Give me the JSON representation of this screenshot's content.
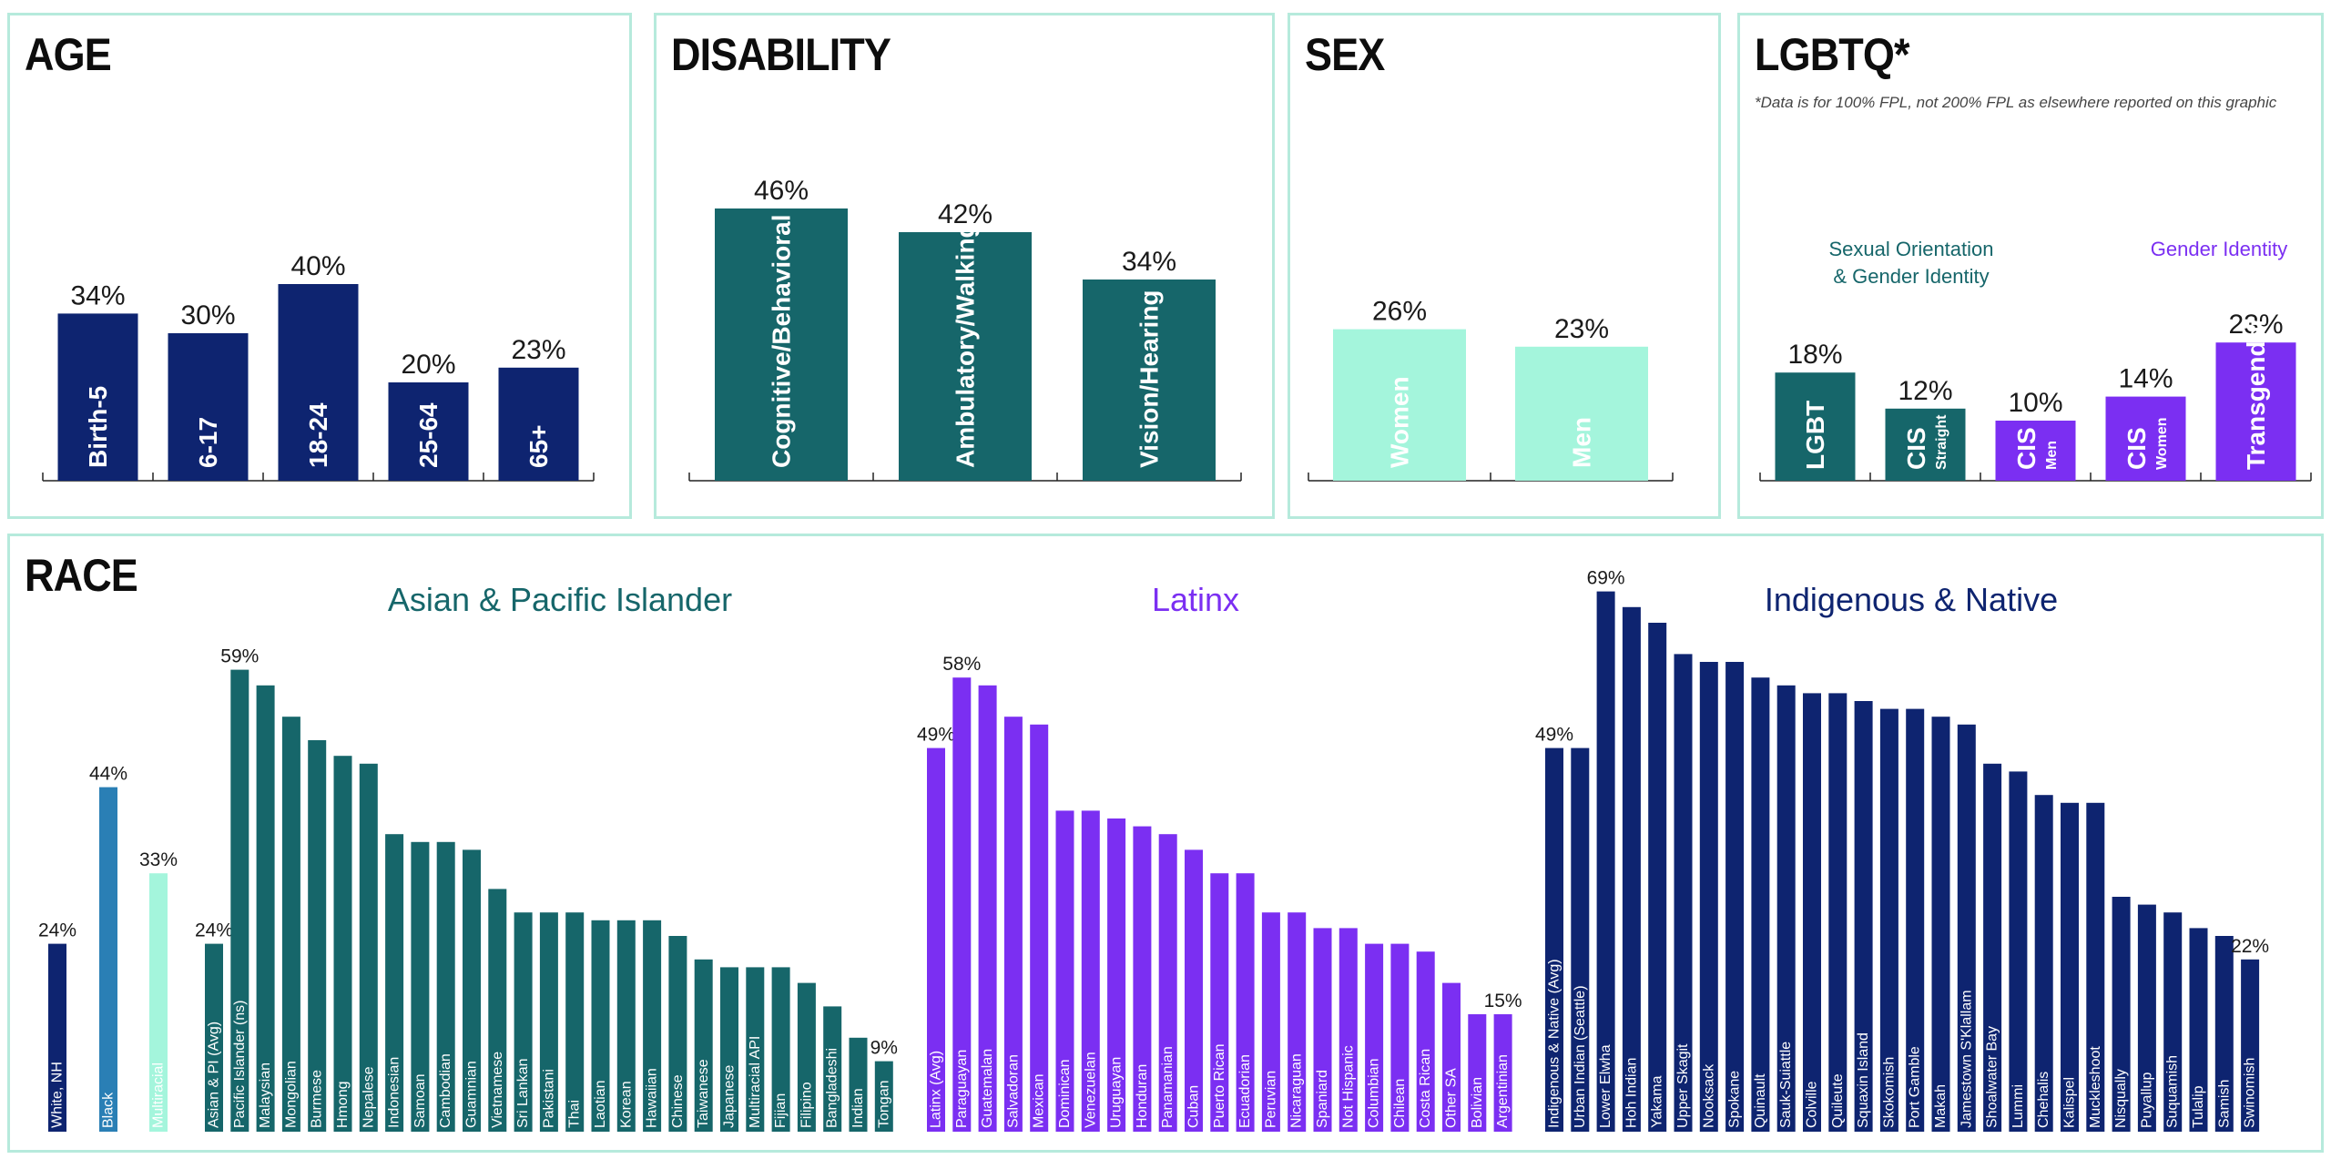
{
  "panels": {
    "age": {
      "title": "AGE"
    },
    "disability": {
      "title": "DISABILITY"
    },
    "sex": {
      "title": "SEX"
    },
    "lgbtq": {
      "title": "LGBTQ*",
      "note": "*Data is for 100% FPL, not 200% FPL as elsewhere reported on this graphic"
    },
    "race": {
      "title": "RACE"
    }
  },
  "colors": {
    "navy": "#0e2470",
    "teal": "#16666a",
    "mint": "#a4f5dc",
    "purple": "#7b2ff2",
    "blue": "#2a7fb5",
    "border": "#b6eadc"
  },
  "chart_data": [
    {
      "id": "age",
      "type": "bar",
      "categories": [
        "Birth-5",
        "6-17",
        "18-24",
        "25-64",
        "65+"
      ],
      "values": [
        34,
        30,
        40,
        20,
        23
      ],
      "value_labels": [
        "34%",
        "30%",
        "40%",
        "20%",
        "23%"
      ],
      "color": "#0e2470"
    },
    {
      "id": "disability",
      "type": "bar",
      "categories": [
        "Cognitive/Behavioral",
        "Ambulatory/Walking",
        "Vision/Hearing"
      ],
      "values": [
        46,
        42,
        34
      ],
      "value_labels": [
        "46%",
        "42%",
        "34%"
      ],
      "color": "#16666a"
    },
    {
      "id": "sex",
      "type": "bar",
      "categories": [
        "Women",
        "Men"
      ],
      "values": [
        26,
        23
      ],
      "value_labels": [
        "26%",
        "23%"
      ],
      "color": "#a4f5dc"
    },
    {
      "id": "lgbtq",
      "type": "bar",
      "group_labels": [
        {
          "text": "Sexual Orientation",
          "color": "#16666a"
        },
        {
          "text": "& Gender Identity",
          "color": "#16666a"
        },
        {
          "text": "Gender Identity",
          "color": "#7b2ff2"
        }
      ],
      "bars": [
        {
          "label": "LGBT",
          "sub": "",
          "value": 18,
          "value_label": "18%",
          "color": "#16666a"
        },
        {
          "label": "CIS",
          "sub": "Straight",
          "value": 12,
          "value_label": "12%",
          "color": "#16666a"
        },
        {
          "label": "CIS",
          "sub": "Men",
          "value": 10,
          "value_label": "10%",
          "color": "#7b2ff2"
        },
        {
          "label": "CIS",
          "sub": "Women",
          "value": 14,
          "value_label": "14%",
          "color": "#7b2ff2"
        },
        {
          "label": "Transgender",
          "sub": "",
          "value": 23,
          "value_label": "23%",
          "color": "#7b2ff2"
        }
      ]
    },
    {
      "id": "race",
      "type": "bar",
      "standalone": [
        {
          "label": "White, NH",
          "value": 24,
          "value_label": "24%",
          "color": "#0e2470"
        },
        {
          "label": "Black",
          "value": 44,
          "value_label": "44%",
          "color": "#2a7fb5"
        },
        {
          "label": "Multiracial",
          "value": 33,
          "value_label": "33%",
          "color": "#a4f5dc"
        }
      ],
      "groups": [
        {
          "name": "Asian & Pacific Islander",
          "color": "#16666a",
          "categories": [
            "Asian & PI (Avg)",
            "Pacific Islander (ns)",
            "Malaysian",
            "Mongolian",
            "Burmese",
            "Hmong",
            "Nepalese",
            "Indonesian",
            "Samoan",
            "Cambodian",
            "Guamnian",
            "Vietnamese",
            "Sri Lankan",
            "Pakistani",
            "Thai",
            "Laotian",
            "Korean",
            "Hawaiian",
            "Chinese",
            "Taiwanese",
            "Japanese",
            "Multiracial API",
            "Fijian",
            "Filipino",
            "Bangladeshi",
            "Indian",
            "Tongan"
          ],
          "values": [
            24,
            59,
            57,
            53,
            50,
            48,
            47,
            38,
            37,
            37,
            36,
            31,
            28,
            28,
            28,
            27,
            27,
            27,
            25,
            22,
            21,
            21,
            21,
            19,
            16,
            12,
            9
          ],
          "value_labels": [
            "24%",
            "59%",
            "",
            "",
            "",
            "",
            "",
            "",
            "",
            "",
            "",
            "",
            "",
            "",
            "",
            "",
            "",
            "",
            "",
            "",
            "",
            "",
            "",
            "",
            "",
            "",
            "9%"
          ]
        },
        {
          "name": "Latinx",
          "color": "#7b2ff2",
          "categories": [
            "Latinx (Avg)",
            "Paraguayan",
            "Guatemalan",
            "Salvadoran",
            "Mexican",
            "Dominican",
            "Venezuelan",
            "Uruguayan",
            "Honduran",
            "Panamanian",
            "Cuban",
            "Puerto Rican",
            "Ecuadorian",
            "Peruvian",
            "Nicaraguan",
            "Spaniard",
            "Not Hispanic",
            "Columbian",
            "Chilean",
            "Costa Rican",
            "Other SA",
            "Bolivian",
            "Argentinian"
          ],
          "values": [
            49,
            58,
            57,
            53,
            52,
            41,
            41,
            40,
            39,
            38,
            36,
            33,
            33,
            28,
            28,
            26,
            26,
            24,
            24,
            23,
            19,
            15,
            15
          ],
          "value_labels": [
            "49%",
            "58%",
            "",
            "",
            "",
            "",
            "",
            "",
            "",
            "",
            "",
            "",
            "",
            "",
            "",
            "",
            "",
            "",
            "",
            "",
            "",
            "",
            "15%"
          ]
        },
        {
          "name": "Indigenous & Native",
          "color": "#0e2470",
          "categories": [
            "Indigenous & Native (Avg)",
            "Urban Indian (Seattle)",
            "Lower Elwha",
            "Hoh Indian",
            "Yakama",
            "Upper Skagit",
            "Nooksack",
            "Spokane",
            "Quinault",
            "Sauk-Suiattle",
            "Colville",
            "Quileute",
            "Squaxin Island",
            "Skokomish",
            "Port Gamble",
            "Makah",
            "Jamestown S'Klallam",
            "Shoalwater Bay",
            "Lummi",
            "Chehalis",
            "Kalispel",
            "Muckleshoot",
            "Nisqually",
            "Puyallup",
            "Suquamish",
            "Tulalip",
            "Samish",
            "Swinomish"
          ],
          "values": [
            49,
            49,
            69,
            67,
            65,
            61,
            60,
            60,
            58,
            57,
            56,
            56,
            55,
            54,
            54,
            53,
            52,
            47,
            46,
            43,
            42,
            42,
            30,
            29,
            28,
            26,
            25,
            22
          ],
          "value_labels": [
            "49%",
            "",
            "69%",
            "",
            "",
            "",
            "",
            "",
            "",
            "",
            "",
            "",
            "",
            "",
            "",
            "",
            "",
            "",
            "",
            "",
            "",
            "",
            "",
            "",
            "",
            "",
            "",
            "22%"
          ]
        }
      ]
    }
  ]
}
